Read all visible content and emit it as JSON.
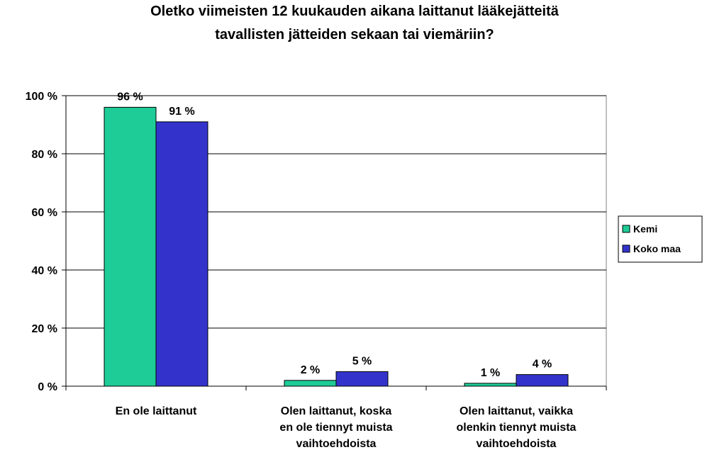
{
  "chart_data": {
    "type": "bar",
    "title": "Oletko viimeisten 12 kuukauden aikana laittanut lääkejätteitä\ntavallisten jätteiden sekaan tai viemäriin?",
    "categories": [
      "En ole laittanut",
      "Olen laittanut, koska\nen ole tiennyt muista\nvaihtoehdoista",
      "Olen laittanut, vaikka\nolenkin tiennyt muista\nvaihtoehdoista"
    ],
    "series": [
      {
        "name": "Kemi",
        "color": "#1dcc96",
        "values": [
          96,
          2,
          1
        ],
        "value_labels": [
          "96 %",
          "2 %",
          "1 %"
        ]
      },
      {
        "name": "Koko maa",
        "color": "#3333cc",
        "values": [
          91,
          5,
          4
        ],
        "value_labels": [
          "91 %",
          "5 %",
          "4 %"
        ]
      }
    ],
    "ylim": [
      0,
      100
    ],
    "yticks": [
      {
        "value": 0,
        "label": "0 %"
      },
      {
        "value": 20,
        "label": "20 %"
      },
      {
        "value": 40,
        "label": "40 %"
      },
      {
        "value": 60,
        "label": "60 %"
      },
      {
        "value": 80,
        "label": "80 %"
      },
      {
        "value": 100,
        "label": "100 %"
      }
    ],
    "grid": true,
    "legend": "right"
  }
}
